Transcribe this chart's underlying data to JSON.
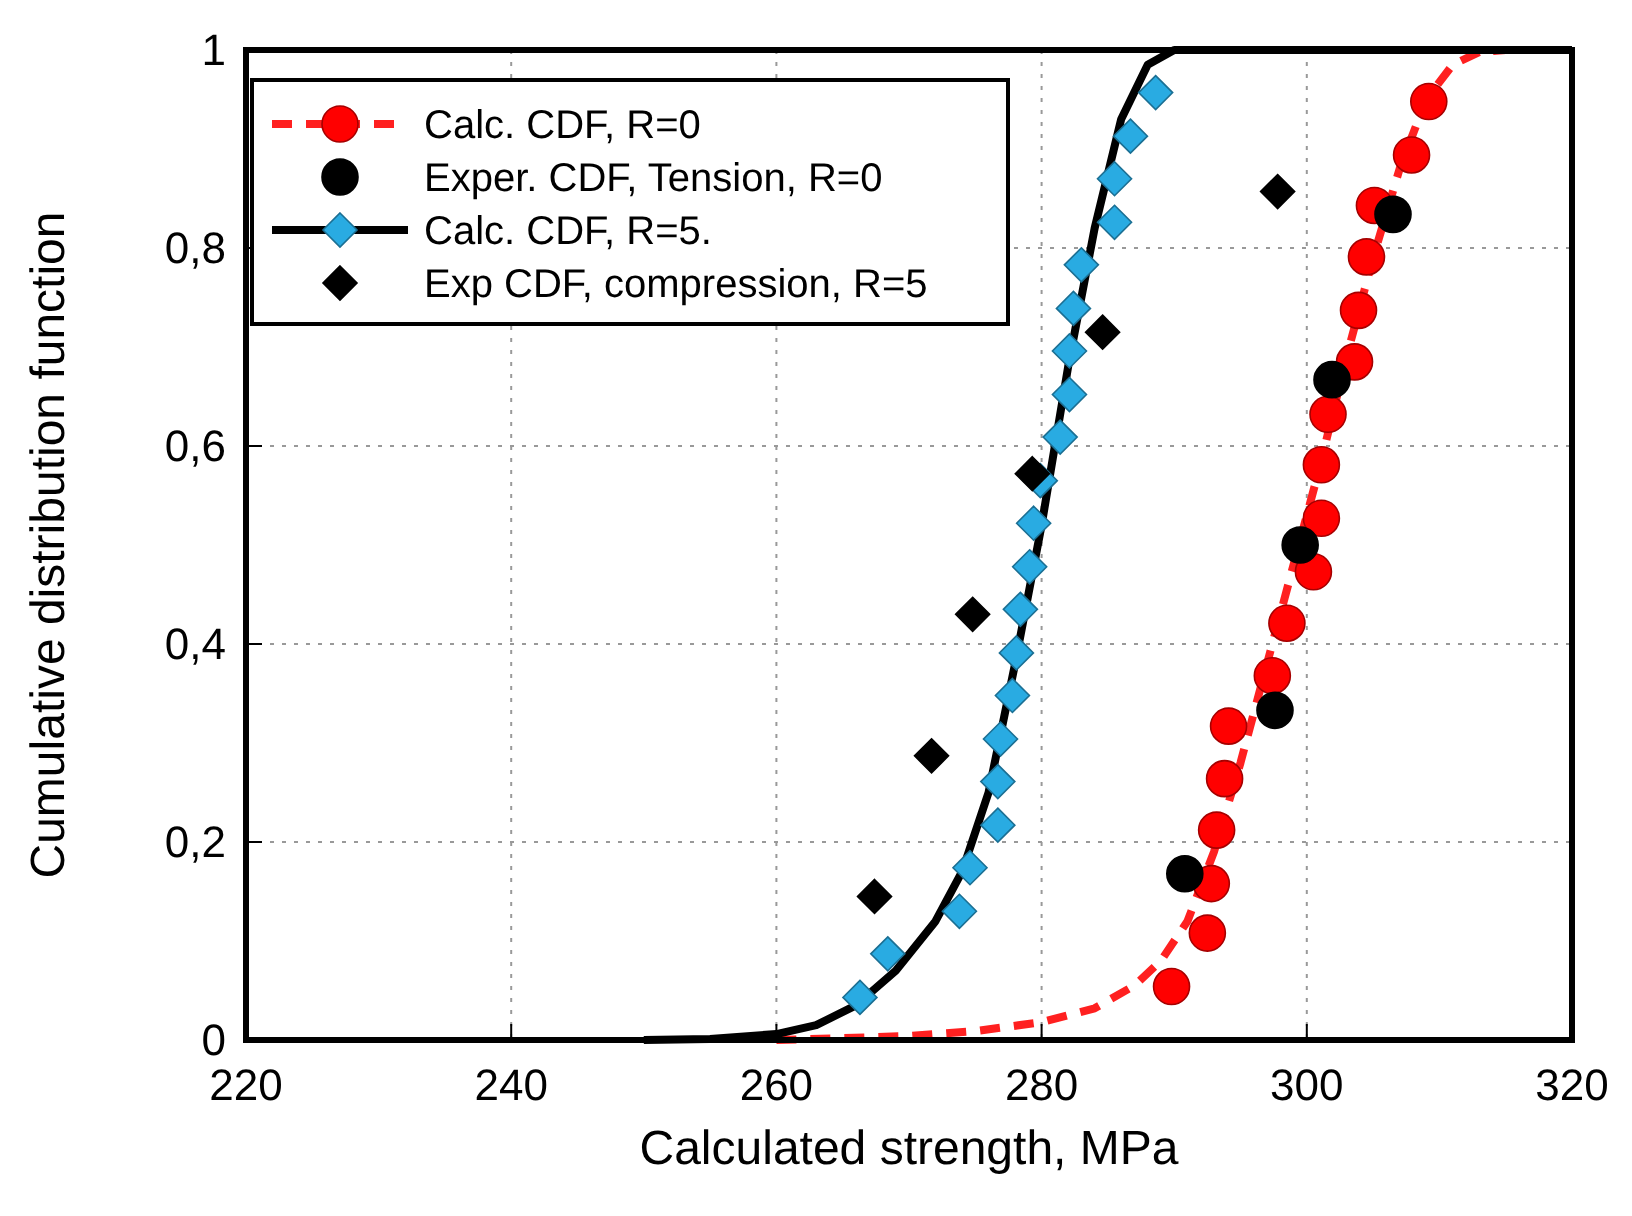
{
  "chart_data": {
    "type": "scatter",
    "xlabel": "Calculated strength, MPa",
    "ylabel": "Cumulative distribution function",
    "xlim": [
      220,
      320
    ],
    "xticks": [
      220,
      240,
      260,
      280,
      300,
      320
    ],
    "ylim": [
      0,
      1
    ],
    "yticks": [
      0,
      {
        "value": 0.2,
        "label": "0,2"
      },
      {
        "value": 0.4,
        "label": "0,4"
      },
      {
        "value": 0.6,
        "label": "0,6"
      },
      {
        "value": 0.8,
        "label": "0,8"
      },
      1
    ],
    "grid": true,
    "legend": "top left",
    "series": [
      {
        "type": "line",
        "color": "#ff2020",
        "line_style": "dashed",
        "marker": "none",
        "x": [
          260,
          270,
          275,
          280,
          284,
          287,
          289,
          291,
          293,
          295,
          297,
          299,
          301,
          303,
          305,
          307,
          309,
          311,
          313,
          315
        ],
        "values": [
          0,
          0.004,
          0.009,
          0.018,
          0.032,
          0.055,
          0.08,
          0.12,
          0.19,
          0.28,
          0.38,
          0.48,
          0.58,
          0.69,
          0.79,
          0.88,
          0.95,
          0.985,
          0.998,
          1
        ]
      },
      {
        "name": "Calc. CDF, R=0",
        "type": "scatter",
        "color": "#ff0000",
        "marker": "circle",
        "x": [
          289.8,
          292.5,
          292.8,
          293.2,
          293.8,
          294.1,
          297.4,
          298.5,
          300.5,
          301.1,
          301.1,
          301.6,
          303.6,
          303.9,
          304.5,
          305.1,
          307.9,
          309.2
        ],
        "values": [
          0.054,
          0.108,
          0.158,
          0.212,
          0.264,
          0.317,
          0.368,
          0.421,
          0.473,
          0.527,
          0.581,
          0.632,
          0.685,
          0.737,
          0.791,
          0.843,
          0.894,
          0.948
        ]
      },
      {
        "name": "Exper. CDF, Tension, R=0",
        "type": "scatter",
        "color": "#000000",
        "marker": "circle",
        "x": [
          290.8,
          297.6,
          299.5,
          301.9,
          306.5
        ],
        "values": [
          0.168,
          0.333,
          0.5,
          0.667,
          0.834
        ]
      },
      {
        "type": "line",
        "color": "#000000",
        "line_style": "solid",
        "marker": "none",
        "x": [
          250,
          255,
          260,
          263,
          266,
          269,
          272,
          274,
          276,
          278,
          280,
          282,
          284,
          286,
          288,
          290,
          320
        ],
        "values": [
          0,
          0.001,
          0.006,
          0.015,
          0.035,
          0.07,
          0.12,
          0.17,
          0.25,
          0.38,
          0.52,
          0.68,
          0.82,
          0.93,
          0.985,
          1,
          1
        ]
      },
      {
        "name": "Calc. CDF, R=5.",
        "type": "scatter",
        "color": "#29abe2",
        "marker": "diamond",
        "x": [
          266.3,
          268.4,
          273.8,
          274.6,
          276.7,
          276.7,
          276.9,
          277.8,
          278.1,
          278.4,
          279.1,
          279.4,
          279.9,
          281.4,
          282.1,
          282.1,
          282.4,
          283,
          285.5,
          285.5,
          286.7,
          288.6
        ],
        "values": [
          0.043,
          0.087,
          0.13,
          0.174,
          0.217,
          0.261,
          0.304,
          0.348,
          0.391,
          0.435,
          0.478,
          0.522,
          0.565,
          0.609,
          0.652,
          0.696,
          0.739,
          0.783,
          0.826,
          0.87,
          0.913,
          0.957
        ]
      },
      {
        "name": "Exp CDF, compression, R=5",
        "type": "scatter",
        "color": "#000000",
        "marker": "diamond",
        "x": [
          267.4,
          271.7,
          274.8,
          279.3,
          284.6,
          297.8
        ],
        "values": [
          0.145,
          0.287,
          0.43,
          0.572,
          0.715,
          0.857
        ]
      }
    ]
  }
}
